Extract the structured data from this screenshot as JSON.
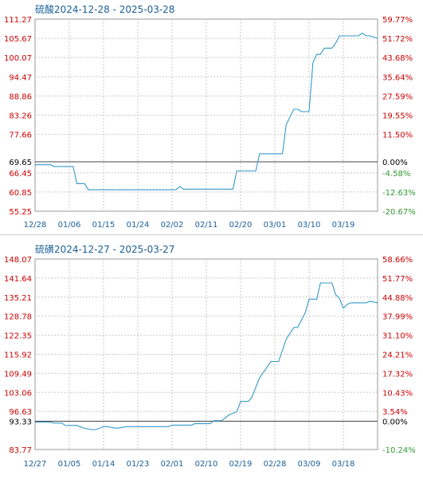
{
  "chart_data": [
    {
      "type": "line",
      "title": "硫酸2024-12-28 - 2025-03-28",
      "base_value": 69.65,
      "ylim": [
        55.25,
        111.27
      ],
      "left_ticks": [
        "111.27",
        "105.67",
        "100.07",
        "94.47",
        "88.86",
        "83.26",
        "77.66",
        "69.65",
        "66.45",
        "60.85",
        "55.25"
      ],
      "right_ticks": [
        "59.77%",
        "51.72%",
        "43.68%",
        "35.64%",
        "27.59%",
        "19.55%",
        "11.50%",
        "0.00%",
        "-4.58%",
        "-12.63%",
        "-20.67%"
      ],
      "x_ticks": [
        "12/28",
        "01/06",
        "01/15",
        "01/24",
        "02/02",
        "02/11",
        "02/20",
        "03/01",
        "03/10",
        "03/19"
      ],
      "grid": true,
      "series": [
        {
          "color": "#3399cc",
          "x": [
            "2024-12-28",
            "2025-01-01",
            "2025-01-02",
            "2025-01-07",
            "2025-01-08",
            "2025-01-10",
            "2025-01-11",
            "2025-01-18",
            "2025-02-03",
            "2025-02-04",
            "2025-02-05",
            "2025-02-18",
            "2025-02-19",
            "2025-02-24",
            "2025-02-25",
            "2025-03-03",
            "2025-03-04",
            "2025-03-06",
            "2025-03-07",
            "2025-03-08",
            "2025-03-10",
            "2025-03-11",
            "2025-03-12",
            "2025-03-13",
            "2025-03-14",
            "2025-03-16",
            "2025-03-17",
            "2025-03-18",
            "2025-03-20",
            "2025-03-23",
            "2025-03-24",
            "2025-03-25",
            "2025-03-26",
            "2025-03-28"
          ],
          "values": [
            68.8,
            68.8,
            68.3,
            68.3,
            63.3,
            63.3,
            61.5,
            61.5,
            61.5,
            62.4,
            61.7,
            61.7,
            67.0,
            67.0,
            72.0,
            72.0,
            80.5,
            85.0,
            85.0,
            84.3,
            84.3,
            98.5,
            101.0,
            101.0,
            102.8,
            102.8,
            104.3,
            106.4,
            106.4,
            106.4,
            107.2,
            106.4,
            106.4,
            105.7
          ]
        }
      ]
    },
    {
      "type": "line",
      "title": "硫磺2024-12-27 - 2025-03-27",
      "base_value": 93.33,
      "ylim": [
        83.77,
        148.07
      ],
      "left_ticks": [
        "148.07",
        "141.64",
        "135.21",
        "128.78",
        "122.35",
        "115.92",
        "109.49",
        "103.06",
        "96.63",
        "93.33",
        "83.77"
      ],
      "right_ticks": [
        "58.66%",
        "51.77%",
        "44.88%",
        "37.99%",
        "31.10%",
        "24.21%",
        "17.32%",
        "10.43%",
        "3.54%",
        "0.00%",
        "-10.24%"
      ],
      "x_ticks": [
        "12/27",
        "01/05",
        "01/14",
        "01/23",
        "02/01",
        "02/10",
        "02/19",
        "02/28",
        "03/09",
        "03/18"
      ],
      "grid": true,
      "series": [
        {
          "color": "#3399cc",
          "x": [
            "2024-12-27",
            "2024-12-31",
            "2025-01-01",
            "2025-01-03",
            "2025-01-04",
            "2025-01-07",
            "2025-01-09",
            "2025-01-11",
            "2025-01-12",
            "2025-01-14",
            "2025-01-15",
            "2025-01-17",
            "2025-01-18",
            "2025-01-20",
            "2025-01-21",
            "2025-01-31",
            "2025-02-01",
            "2025-02-06",
            "2025-02-07",
            "2025-02-11",
            "2025-02-12",
            "2025-02-14",
            "2025-02-16",
            "2025-02-18",
            "2025-02-19",
            "2025-02-21",
            "2025-02-22",
            "2025-02-24",
            "2025-02-27",
            "2025-03-01",
            "2025-03-03",
            "2025-03-05",
            "2025-03-06",
            "2025-03-08",
            "2025-03-09",
            "2025-03-11",
            "2025-03-12",
            "2025-03-15",
            "2025-03-16",
            "2025-03-17",
            "2025-03-18",
            "2025-03-19",
            "2025-03-20",
            "2025-03-24",
            "2025-03-25",
            "2025-03-27"
          ],
          "values": [
            93.0,
            93.0,
            92.7,
            92.7,
            91.9,
            91.9,
            90.9,
            90.5,
            90.5,
            91.5,
            91.5,
            91.0,
            91.0,
            91.5,
            91.5,
            91.5,
            92.0,
            92.0,
            92.5,
            92.5,
            93.5,
            93.5,
            95.5,
            96.5,
            100.0,
            100.0,
            101.5,
            108.0,
            113.5,
            113.5,
            121.0,
            125.0,
            125.0,
            130.0,
            134.5,
            134.5,
            140.0,
            140.0,
            136.0,
            134.8,
            131.5,
            132.8,
            133.3,
            133.3,
            133.8,
            133.3
          ]
        }
      ]
    }
  ]
}
